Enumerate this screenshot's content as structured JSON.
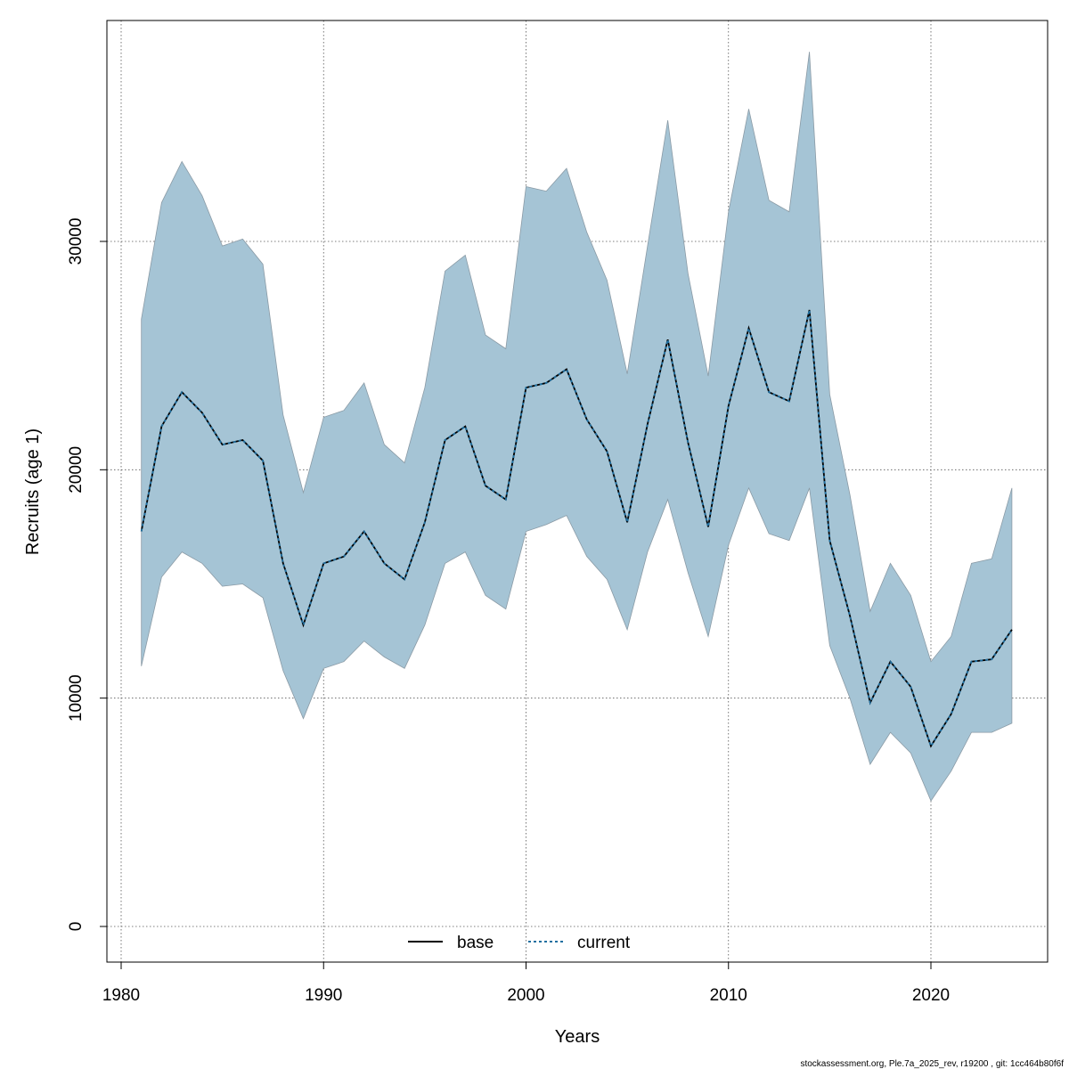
{
  "chart_data": {
    "type": "area",
    "title": "",
    "xlabel": "Years",
    "ylabel": "Recruits (age 1)",
    "xlim": [
      1980,
      2025
    ],
    "ylim": [
      0,
      40000
    ],
    "xticks": [
      1980,
      1990,
      2000,
      2010,
      2020
    ],
    "yticks": [
      0,
      10000,
      20000,
      30000
    ],
    "grid": true,
    "legend_position": "bottom",
    "x": [
      1981,
      1982,
      1983,
      1984,
      1985,
      1986,
      1987,
      1988,
      1989,
      1990,
      1991,
      1992,
      1993,
      1994,
      1995,
      1996,
      1997,
      1998,
      1999,
      2000,
      2001,
      2002,
      2003,
      2004,
      2005,
      2006,
      2007,
      2008,
      2009,
      2010,
      2011,
      2012,
      2013,
      2014,
      2015,
      2016,
      2017,
      2018,
      2019,
      2020,
      2021,
      2022,
      2023,
      2024
    ],
    "band": {
      "color": "#a5c4d5",
      "lower": [
        11400,
        15300,
        16400,
        15900,
        14900,
        15000,
        14400,
        11200,
        9100,
        11300,
        11600,
        12500,
        11800,
        11300,
        13200,
        15900,
        16400,
        14500,
        13900,
        17300,
        17600,
        18000,
        16200,
        15200,
        13000,
        16400,
        18700,
        15500,
        12700,
        16700,
        19200,
        17200,
        16900,
        19200,
        12300,
        10000,
        7100,
        8500,
        7600,
        5500,
        6800,
        8500,
        8500,
        8900
      ],
      "upper": [
        26600,
        31700,
        33500,
        32000,
        29800,
        30100,
        29000,
        22400,
        19000,
        22300,
        22600,
        23800,
        21100,
        20300,
        23600,
        28700,
        29400,
        25900,
        25300,
        32400,
        32200,
        33200,
        30400,
        28300,
        24200,
        29800,
        35300,
        28600,
        24100,
        31300,
        35800,
        31800,
        31300,
        38300,
        23300,
        18900,
        13800,
        15900,
        14500,
        11600,
        12700,
        15900,
        16100,
        19200
      ]
    },
    "series": [
      {
        "name": "base",
        "color": "#000000",
        "style": "solid",
        "values": [
          17300,
          21900,
          23400,
          22500,
          21100,
          21300,
          20400,
          15900,
          13200,
          15900,
          16200,
          17300,
          15900,
          15200,
          17700,
          21300,
          21900,
          19300,
          18700,
          23600,
          23800,
          24400,
          22200,
          20800,
          17700,
          22000,
          25700,
          21200,
          17500,
          22800,
          26200,
          23400,
          23000,
          27000,
          16900,
          13600,
          9800,
          11600,
          10500,
          7900,
          9300,
          11600,
          11700,
          13000
        ]
      },
      {
        "name": "current",
        "color": "#1f6fa0",
        "style": "dashed",
        "values": [
          17300,
          21900,
          23400,
          22500,
          21100,
          21300,
          20400,
          15900,
          13200,
          15900,
          16200,
          17300,
          15900,
          15200,
          17700,
          21300,
          21900,
          19300,
          18700,
          23600,
          23800,
          24400,
          22200,
          20800,
          17700,
          22000,
          25700,
          21200,
          17500,
          22800,
          26200,
          23400,
          23000,
          27000,
          16900,
          13600,
          9800,
          11600,
          10500,
          7900,
          9300,
          11600,
          11700,
          13000
        ]
      }
    ]
  },
  "footer": "stockassessment.org, Ple.7a_2025_rev, r19200 , git: 1cc464b80f6f"
}
